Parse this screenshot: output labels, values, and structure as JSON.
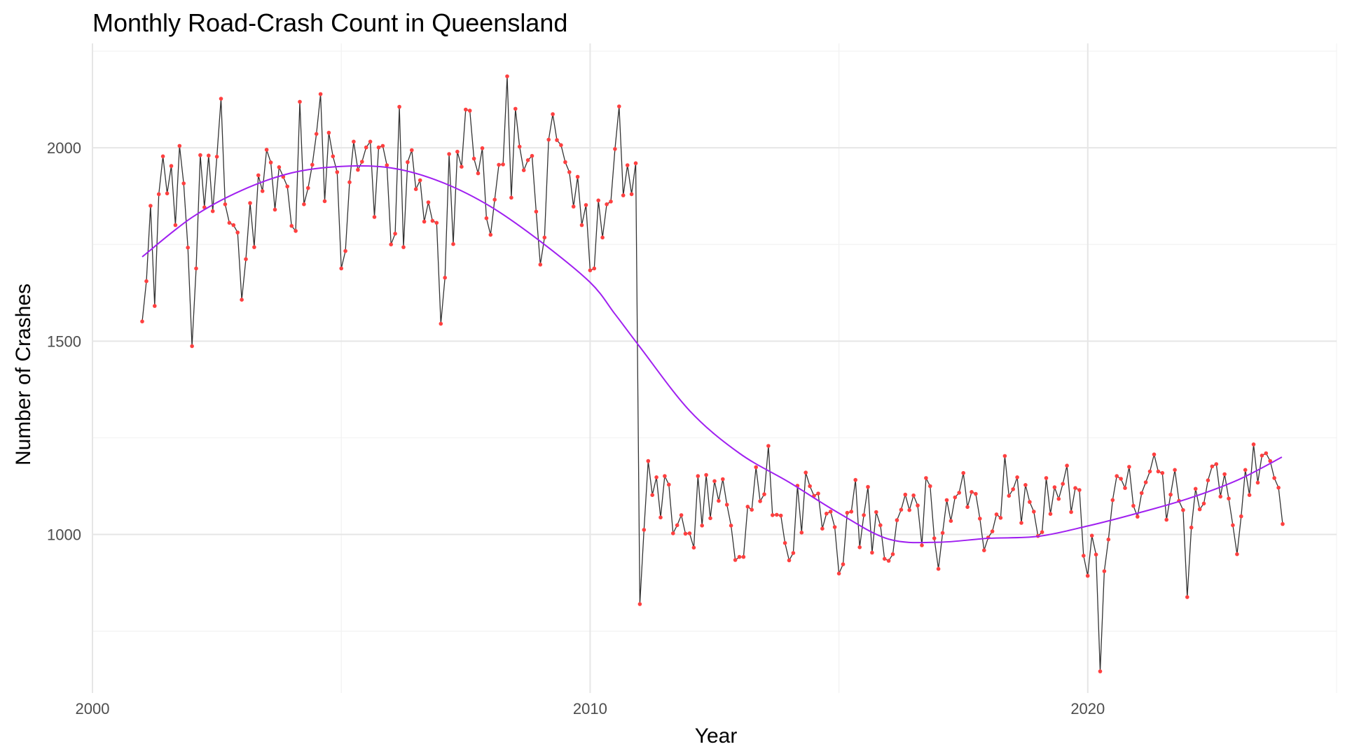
{
  "chart_data": {
    "type": "line",
    "title": "Monthly Road-Crash Count in Queensland",
    "xlabel": "Year",
    "ylabel": "Number of Crashes",
    "xlim": [
      2000,
      2025
    ],
    "ylim": [
      590,
      2270
    ],
    "x_ticks": [
      2000,
      2010,
      2020
    ],
    "y_ticks": [
      1000,
      1500,
      2000
    ],
    "grid": true,
    "legend": "none",
    "colors": {
      "line": "#333333",
      "points": "#ff4040",
      "trend": "#a020f0"
    },
    "series": [
      {
        "kind": "monthly-observed",
        "x_start": 2001.0,
        "x_step": 0.08333,
        "values": [
          1551,
          1655,
          1850,
          1591,
          1880,
          1978,
          1882,
          1953,
          1800,
          2005,
          1908,
          1742,
          1487,
          1688,
          1981,
          1846,
          1980,
          1836,
          1977,
          2127,
          1854,
          1806,
          1800,
          1781,
          1607,
          1712,
          1857,
          1743,
          1929,
          1888,
          1995,
          1962,
          1840,
          1950,
          1925,
          1900,
          1798,
          1785,
          2119,
          1854,
          1896,
          1956,
          2036,
          2139,
          1862,
          2039,
          1978,
          1937,
          1688,
          1733,
          1911,
          2016,
          1943,
          1964,
          2001,
          2016,
          1821,
          2001,
          2005,
          1955,
          1750,
          1778,
          2106,
          1743,
          1963,
          1994,
          1893,
          1916,
          1809,
          1859,
          1811,
          1806,
          1545,
          1664,
          1984,
          1751,
          1990,
          1951,
          2099,
          2096,
          1972,
          1934,
          1999,
          1818,
          1775,
          1866,
          1956,
          1957,
          2185,
          1871,
          2101,
          2003,
          1942,
          1968,
          1979,
          1835,
          1698,
          1768,
          2021,
          2087,
          2020,
          2007,
          1963,
          1937,
          1848,
          1925,
          1800,
          1852,
          1683,
          1688,
          1864,
          1768,
          1854,
          1861,
          1997,
          2107,
          1877,
          1955,
          1880,
          1960,
          820,
          1012,
          1190,
          1102,
          1148,
          1044,
          1151,
          1129,
          1003,
          1024,
          1050,
          1002,
          1003,
          966,
          1151,
          1023,
          1154,
          1042,
          1138,
          1087,
          1143,
          1077,
          1023,
          934,
          942,
          942,
          1072,
          1064,
          1174,
          1086,
          1104,
          1229,
          1050,
          1051,
          1049,
          978,
          933,
          952,
          1126,
          1005,
          1160,
          1125,
          1100,
          1106,
          1015,
          1054,
          1059,
          1019,
          899,
          923,
          1056,
          1059,
          1141,
          967,
          1050,
          1123,
          953,
          1058,
          1024,
          937,
          932,
          949,
          1037,
          1064,
          1103,
          1063,
          1101,
          1075,
          972,
          1146,
          1125,
          990,
          911,
          1004,
          1089,
          1035,
          1096,
          1108,
          1159,
          1071,
          1110,
          1105,
          1041,
          959,
          992,
          1008,
          1052,
          1043,
          1203,
          1100,
          1117,
          1148,
          1030,
          1128,
          1084,
          1059,
          996,
          1006,
          1146,
          1053,
          1122,
          1092,
          1131,
          1178,
          1058,
          1120,
          1115,
          945,
          893,
          997,
          948,
          646,
          905,
          987,
          1089,
          1151,
          1144,
          1120,
          1175,
          1074,
          1046,
          1107,
          1135,
          1163,
          1207,
          1163,
          1159,
          1038,
          1103,
          1167,
          1087,
          1063,
          838,
          1018,
          1118,
          1065,
          1080,
          1140,
          1176,
          1182,
          1098,
          1156,
          1093,
          1024,
          949,
          1047,
          1167,
          1102,
          1233,
          1134,
          1204,
          1210,
          1190,
          1146,
          1121,
          1027
        ]
      },
      {
        "kind": "smoothed-trend",
        "x": [
          2001.0,
          2002.0,
          2003.0,
          2004.0,
          2005.0,
          2006.0,
          2007.0,
          2008.0,
          2009.0,
          2010.0,
          2010.5,
          2011.0,
          2012.0,
          2013.0,
          2014.0,
          2015.0,
          2016.0,
          2017.0,
          2018.0,
          2019.0,
          2020.0,
          2021.0,
          2022.0,
          2023.0,
          2023.9
        ],
        "values": [
          1718,
          1820,
          1890,
          1935,
          1952,
          1948,
          1912,
          1848,
          1758,
          1652,
          1570,
          1485,
          1320,
          1210,
          1135,
          1055,
          988,
          980,
          990,
          995,
          1022,
          1055,
          1092,
          1140,
          1200
        ]
      }
    ]
  }
}
